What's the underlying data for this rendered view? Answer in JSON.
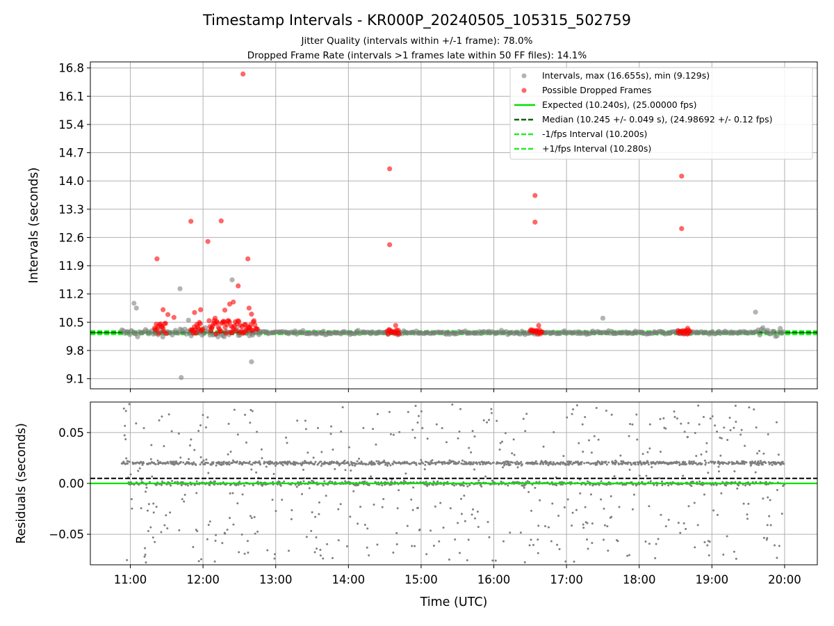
{
  "title": "Timestamp Intervals - KR000P_20240505_105315_502759",
  "subtitle_1": "Jitter Quality (intervals within +/-1 frame): 78.0%",
  "subtitle_2": "Dropped Frame Rate (intervals >1 frames late within 50 FF files): 14.1%",
  "colors": {
    "intervals": "#808080",
    "dropped": "#ff0000",
    "expected": "#00e000",
    "median": "#006400",
    "bound": "#22ee22",
    "grid": "#b0b0b0"
  },
  "chart_data": [
    {
      "type": "scatter",
      "ylabel": "Intervals (seconds)",
      "ylim": [
        8.85,
        16.95
      ],
      "xlim": [
        "10:27",
        "20:27"
      ],
      "y_ticks": [
        "9.1",
        "9.8",
        "10.5",
        "11.2",
        "11.9",
        "12.6",
        "13.3",
        "14.0",
        "14.7",
        "15.4",
        "16.1",
        "16.8"
      ],
      "grid": true,
      "legend_position": "top-right",
      "legend": [
        "Intervals, max (16.655s), min (9.129s)",
        "Possible Dropped Frames",
        "Expected (10.240s), (25.00000 fps)",
        "Median (10.245 +/- 0.049 s), (24.98692 +/- 0.12 fps)",
        "-1/fps Interval (10.200s)",
        "+1/fps Interval (10.280s)"
      ],
      "reference_lines": {
        "expected": 10.24,
        "median": 10.245,
        "minus_one_frame": 10.2,
        "plus_one_frame": 10.28
      },
      "series": [
        {
          "name": "Intervals, max (16.655s), min (9.129s)",
          "summary": {
            "max": 16.655,
            "min": 9.129,
            "time_range": [
              "10:53",
              "20:00"
            ],
            "typical_band": [
              9.9,
              10.55
            ]
          }
        },
        {
          "name": "Possible Dropped Frames",
          "points": [
            {
              "x": "11:22",
              "y": 12.07
            },
            {
              "x": "11:27",
              "y": 10.81
            },
            {
              "x": "11:31",
              "y": 10.69
            },
            {
              "x": "11:36",
              "y": 10.62
            },
            {
              "x": "11:50",
              "y": 13.0
            },
            {
              "x": "11:53",
              "y": 10.74
            },
            {
              "x": "11:58",
              "y": 10.81
            },
            {
              "x": "12:04",
              "y": 12.5
            },
            {
              "x": "12:10",
              "y": 10.6
            },
            {
              "x": "12:15",
              "y": 13.01
            },
            {
              "x": "12:18",
              "y": 10.8
            },
            {
              "x": "12:22",
              "y": 10.95
            },
            {
              "x": "12:25",
              "y": 11.0
            },
            {
              "x": "12:29",
              "y": 11.4
            },
            {
              "x": "12:33",
              "y": 16.65
            },
            {
              "x": "12:37",
              "y": 12.07
            },
            {
              "x": "12:38",
              "y": 10.85
            },
            {
              "x": "12:40",
              "y": 10.7
            },
            {
              "x": "14:34",
              "y": 14.3
            },
            {
              "x": "14:34",
              "y": 12.42
            },
            {
              "x": "14:39",
              "y": 10.42
            },
            {
              "x": "16:34",
              "y": 13.64
            },
            {
              "x": "16:34",
              "y": 12.98
            },
            {
              "x": "16:37",
              "y": 10.42
            },
            {
              "x": "18:35",
              "y": 14.12
            },
            {
              "x": "18:35",
              "y": 12.82
            },
            {
              "x": "18:40",
              "y": 10.35
            }
          ],
          "clusters": [
            {
              "x_range": [
                "11:20",
                "11:30"
              ],
              "y_band": [
                10.2,
                10.5
              ]
            },
            {
              "x_range": [
                "11:50",
                "12:00"
              ],
              "y_band": [
                10.2,
                10.5
              ]
            },
            {
              "x_range": [
                "12:05",
                "12:45"
              ],
              "y_band": [
                10.2,
                10.55
              ]
            },
            {
              "x_range": [
                "14:32",
                "14:42"
              ],
              "y_band": [
                10.2,
                10.32
              ]
            },
            {
              "x_range": [
                "16:30",
                "16:40"
              ],
              "y_band": [
                10.2,
                10.32
              ]
            },
            {
              "x_range": [
                "18:32",
                "18:42"
              ],
              "y_band": [
                10.2,
                10.3
              ]
            }
          ]
        }
      ]
    },
    {
      "type": "scatter",
      "ylabel": "Residuals (seconds)",
      "xlabel": "Time (UTC)",
      "ylim": [
        -0.08,
        0.08
      ],
      "xlim": [
        "10:27",
        "20:27"
      ],
      "y_ticks": [
        "−0.05",
        "0.00",
        "0.05"
      ],
      "x_ticks": [
        "11:00",
        "12:00",
        "13:00",
        "14:00",
        "15:00",
        "16:00",
        "17:00",
        "18:00",
        "19:00",
        "20:00"
      ],
      "grid": true,
      "reference_lines": {
        "expected": 0.0,
        "median": 0.005
      },
      "series": [
        {
          "name": "Residuals",
          "summary": {
            "time_range": [
              "10:53",
              "20:00"
            ],
            "dense_band": [
              -0.01,
              0.03
            ],
            "sparse_range": [
              -0.08,
              0.08
            ]
          }
        }
      ]
    }
  ]
}
